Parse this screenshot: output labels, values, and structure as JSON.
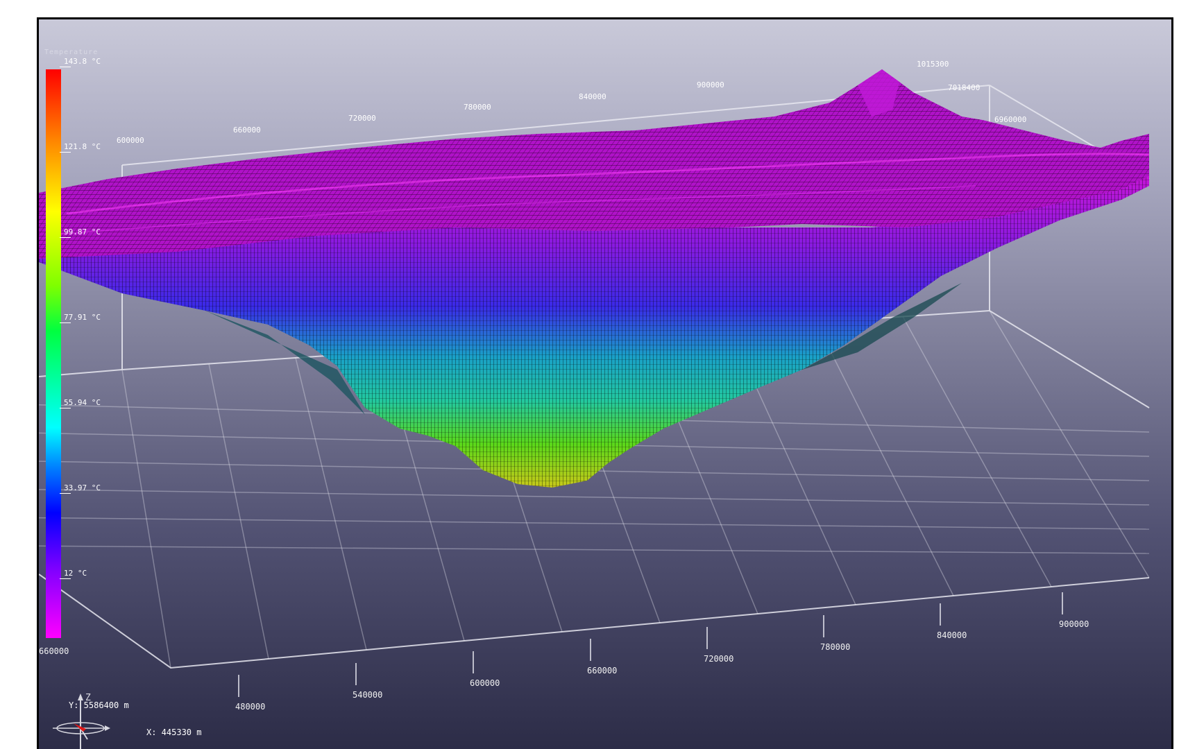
{
  "legend": {
    "title": "Temperature",
    "ticks": [
      "143.8 °C",
      "121.8 °C",
      "99.87 °C",
      "77.91 °C",
      "55.94 °C",
      "33.97 °C",
      "12 °C"
    ],
    "colors": [
      "#ff0000",
      "#ff8000",
      "#ffff00",
      "#00ff40",
      "#00ffff",
      "#0000ff",
      "#8000ff",
      "#ff00ff"
    ]
  },
  "axes": {
    "front_x": [
      "480000",
      "540000",
      "600000",
      "660000",
      "720000",
      "780000",
      "840000",
      "900000"
    ],
    "top_x": [
      "600000",
      "660000",
      "720000",
      "780000",
      "840000",
      "900000",
      "1015300"
    ],
    "right_y": [
      "7018400",
      "6960000"
    ],
    "left_y": [
      "660000"
    ]
  },
  "triad": {
    "z_label": "Z"
  },
  "coordinates": {
    "y_readout": "Y: 5586400 m",
    "x_readout": "X: 445330 m"
  },
  "surface": {
    "top_color": "#b012c8",
    "mesh_color": "#000000",
    "grid_color": "#e8e8f0"
  }
}
